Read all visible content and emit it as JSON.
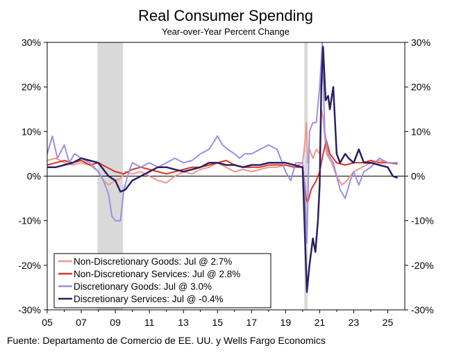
{
  "chart_data": {
    "type": "line",
    "title": "Real Consumer Spending",
    "subtitle": "Year-over-Year Percent Change",
    "source": "Fuente: Departamento de Comercio de EE. UU. y Wells Fargo Economics",
    "xlim": [
      2005,
      2026
    ],
    "ylim": [
      -30,
      30
    ],
    "x_ticks": [
      {
        "value": 2005,
        "label": "05"
      },
      {
        "value": 2007,
        "label": "07"
      },
      {
        "value": 2009,
        "label": "09"
      },
      {
        "value": 2011,
        "label": "11"
      },
      {
        "value": 2013,
        "label": "13"
      },
      {
        "value": 2015,
        "label": "15"
      },
      {
        "value": 2017,
        "label": "17"
      },
      {
        "value": 2019,
        "label": "19"
      },
      {
        "value": 2021,
        "label": "21"
      },
      {
        "value": 2023,
        "label": "23"
      },
      {
        "value": 2025,
        "label": "25"
      }
    ],
    "y_ticks": [
      {
        "value": 30,
        "label": "30%"
      },
      {
        "value": 20,
        "label": "20%"
      },
      {
        "value": 10,
        "label": "10%"
      },
      {
        "value": 0,
        "label": "0%"
      },
      {
        "value": -10,
        "label": "-10%"
      },
      {
        "value": -20,
        "label": "-20%"
      },
      {
        "value": -30,
        "label": "-30%"
      }
    ],
    "recessions": [
      [
        2007.95,
        2009.45
      ],
      [
        2020.1,
        2020.3
      ]
    ],
    "series": [
      {
        "name": "Non-Discretionary Goods",
        "legend": "Non-Discretionary Goods: Jul @ 2.7%",
        "color": "#f0968a",
        "width": 2,
        "points": [
          [
            2005,
            3.5
          ],
          [
            2005.5,
            4
          ],
          [
            2006,
            3
          ],
          [
            2006.5,
            2.5
          ],
          [
            2007,
            3
          ],
          [
            2007.5,
            2.5
          ],
          [
            2008,
            1
          ],
          [
            2008.3,
            -1
          ],
          [
            2008.6,
            -2
          ],
          [
            2009,
            -1
          ],
          [
            2009.3,
            -0.5
          ],
          [
            2009.6,
            1
          ],
          [
            2010,
            0.5
          ],
          [
            2010.5,
            1
          ],
          [
            2011,
            0
          ],
          [
            2011.5,
            -1
          ],
          [
            2012,
            -1.5
          ],
          [
            2012.5,
            0
          ],
          [
            2013,
            1
          ],
          [
            2013.5,
            0.5
          ],
          [
            2014,
            1.5
          ],
          [
            2014.5,
            2
          ],
          [
            2015,
            3
          ],
          [
            2015.5,
            2
          ],
          [
            2016,
            1
          ],
          [
            2016.5,
            1.5
          ],
          [
            2017,
            1
          ],
          [
            2017.5,
            1.5
          ],
          [
            2018,
            2
          ],
          [
            2018.5,
            2
          ],
          [
            2019,
            2.5
          ],
          [
            2019.5,
            2
          ],
          [
            2020,
            3
          ],
          [
            2020.15,
            8
          ],
          [
            2020.22,
            12
          ],
          [
            2020.3,
            3
          ],
          [
            2020.4,
            6
          ],
          [
            2020.6,
            4
          ],
          [
            2020.8,
            6
          ],
          [
            2021,
            5
          ],
          [
            2021.1,
            15
          ],
          [
            2021.2,
            13
          ],
          [
            2021.4,
            5
          ],
          [
            2021.7,
            3
          ],
          [
            2022,
            0
          ],
          [
            2022.3,
            -2
          ],
          [
            2022.6,
            -1
          ],
          [
            2023,
            1
          ],
          [
            2023.5,
            2
          ],
          [
            2024,
            3
          ],
          [
            2024.5,
            3.5
          ],
          [
            2025,
            3
          ],
          [
            2025.58,
            2.7
          ]
        ]
      },
      {
        "name": "Non-Discretionary Services",
        "legend": "Non-Discretionary Services: Jul @ 2.8%",
        "color": "#d9351f",
        "width": 2,
        "points": [
          [
            2005,
            2.5
          ],
          [
            2005.5,
            3
          ],
          [
            2006,
            3.5
          ],
          [
            2006.5,
            3
          ],
          [
            2007,
            3.5
          ],
          [
            2007.5,
            2.5
          ],
          [
            2008,
            3
          ],
          [
            2008.5,
            2
          ],
          [
            2009,
            1
          ],
          [
            2009.5,
            0.5
          ],
          [
            2010,
            1.5
          ],
          [
            2010.5,
            2
          ],
          [
            2011,
            1.5
          ],
          [
            2011.5,
            1
          ],
          [
            2012,
            0.5
          ],
          [
            2012.5,
            1
          ],
          [
            2013,
            1.5
          ],
          [
            2013.5,
            2
          ],
          [
            2014,
            2
          ],
          [
            2014.5,
            2.5
          ],
          [
            2015,
            3
          ],
          [
            2015.5,
            3.5
          ],
          [
            2016,
            2.5
          ],
          [
            2016.5,
            2
          ],
          [
            2017,
            2
          ],
          [
            2017.5,
            2
          ],
          [
            2018,
            2.5
          ],
          [
            2018.5,
            2.5
          ],
          [
            2019,
            2.5
          ],
          [
            2019.5,
            2
          ],
          [
            2020,
            2
          ],
          [
            2020.2,
            -5
          ],
          [
            2020.3,
            -6
          ],
          [
            2020.5,
            -3
          ],
          [
            2020.8,
            -1
          ],
          [
            2021,
            1
          ],
          [
            2021.2,
            5
          ],
          [
            2021.4,
            8
          ],
          [
            2021.6,
            5
          ],
          [
            2022,
            3
          ],
          [
            2022.5,
            2.5
          ],
          [
            2023,
            3
          ],
          [
            2023.5,
            3
          ],
          [
            2024,
            3.5
          ],
          [
            2024.5,
            3
          ],
          [
            2025,
            3
          ],
          [
            2025.58,
            2.8
          ]
        ]
      },
      {
        "name": "Discretionary Goods",
        "legend": "Discretionary Goods: Jul @ 3.0%",
        "color": "#9b8ee6",
        "width": 2,
        "points": [
          [
            2005,
            5
          ],
          [
            2005.3,
            9
          ],
          [
            2005.6,
            4
          ],
          [
            2006,
            7
          ],
          [
            2006.3,
            3
          ],
          [
            2006.6,
            5
          ],
          [
            2007,
            4
          ],
          [
            2007.5,
            3
          ],
          [
            2008,
            1
          ],
          [
            2008.3,
            -1
          ],
          [
            2008.6,
            -4
          ],
          [
            2008.8,
            -9
          ],
          [
            2009,
            -10
          ],
          [
            2009.3,
            -10
          ],
          [
            2009.5,
            -3
          ],
          [
            2009.8,
            1
          ],
          [
            2010,
            3
          ],
          [
            2010.5,
            2
          ],
          [
            2011,
            3
          ],
          [
            2011.5,
            2
          ],
          [
            2012,
            3
          ],
          [
            2012.5,
            4
          ],
          [
            2013,
            3
          ],
          [
            2013.5,
            3.5
          ],
          [
            2014,
            5
          ],
          [
            2014.5,
            6
          ],
          [
            2015,
            9
          ],
          [
            2015.3,
            7
          ],
          [
            2015.6,
            6
          ],
          [
            2016,
            5
          ],
          [
            2016.3,
            4
          ],
          [
            2016.6,
            5
          ],
          [
            2017,
            5
          ],
          [
            2017.5,
            6
          ],
          [
            2018,
            7
          ],
          [
            2018.5,
            6
          ],
          [
            2019,
            1
          ],
          [
            2019.3,
            -1
          ],
          [
            2019.6,
            3
          ],
          [
            2020,
            3
          ],
          [
            2020.15,
            -5
          ],
          [
            2020.25,
            -15
          ],
          [
            2020.4,
            10
          ],
          [
            2020.6,
            12
          ],
          [
            2020.8,
            12
          ],
          [
            2021,
            20
          ],
          [
            2021.15,
            30
          ],
          [
            2021.3,
            10
          ],
          [
            2021.5,
            5
          ],
          [
            2021.8,
            3
          ],
          [
            2022,
            0
          ],
          [
            2022.2,
            -3
          ],
          [
            2022.5,
            -5
          ],
          [
            2022.8,
            -1
          ],
          [
            2023,
            1
          ],
          [
            2023.3,
            -2
          ],
          [
            2023.6,
            1
          ],
          [
            2024,
            2
          ],
          [
            2024.5,
            4
          ],
          [
            2025,
            3
          ],
          [
            2025.58,
            3
          ]
        ]
      },
      {
        "name": "Discretionary Services",
        "legend": "Discretionary Services: Jul @ -0.4%",
        "color": "#2a2060",
        "width": 2.5,
        "points": [
          [
            2005,
            2
          ],
          [
            2005.5,
            2
          ],
          [
            2006,
            2.5
          ],
          [
            2006.5,
            3
          ],
          [
            2007,
            4
          ],
          [
            2007.5,
            3.5
          ],
          [
            2008,
            3
          ],
          [
            2008.3,
            1.5
          ],
          [
            2008.6,
            0
          ],
          [
            2009,
            -1
          ],
          [
            2009.3,
            -3.5
          ],
          [
            2009.6,
            -3
          ],
          [
            2010,
            -1
          ],
          [
            2010.5,
            0
          ],
          [
            2011,
            1
          ],
          [
            2011.5,
            2
          ],
          [
            2012,
            2
          ],
          [
            2012.5,
            1.5
          ],
          [
            2013,
            1
          ],
          [
            2013.5,
            1.5
          ],
          [
            2014,
            2
          ],
          [
            2014.5,
            3
          ],
          [
            2015,
            3
          ],
          [
            2015.5,
            2.5
          ],
          [
            2016,
            2.5
          ],
          [
            2016.5,
            2
          ],
          [
            2017,
            2.5
          ],
          [
            2017.5,
            2.5
          ],
          [
            2018,
            3
          ],
          [
            2018.5,
            3
          ],
          [
            2019,
            3
          ],
          [
            2019.5,
            2.5
          ],
          [
            2020,
            2
          ],
          [
            2020.15,
            -15
          ],
          [
            2020.25,
            -26
          ],
          [
            2020.4,
            -20
          ],
          [
            2020.6,
            -14
          ],
          [
            2020.75,
            -17
          ],
          [
            2020.9,
            -10
          ],
          [
            2021,
            -2
          ],
          [
            2021.1,
            20
          ],
          [
            2021.2,
            29
          ],
          [
            2021.35,
            17
          ],
          [
            2021.5,
            18
          ],
          [
            2021.6,
            15
          ],
          [
            2021.8,
            20
          ],
          [
            2022,
            5
          ],
          [
            2022.2,
            3
          ],
          [
            2022.5,
            5
          ],
          [
            2022.7,
            4
          ],
          [
            2023,
            3
          ],
          [
            2023.3,
            6
          ],
          [
            2023.6,
            3
          ],
          [
            2024,
            3
          ],
          [
            2024.5,
            2.5
          ],
          [
            2025,
            2
          ],
          [
            2025.3,
            0
          ],
          [
            2025.58,
            -0.4
          ]
        ]
      }
    ]
  }
}
